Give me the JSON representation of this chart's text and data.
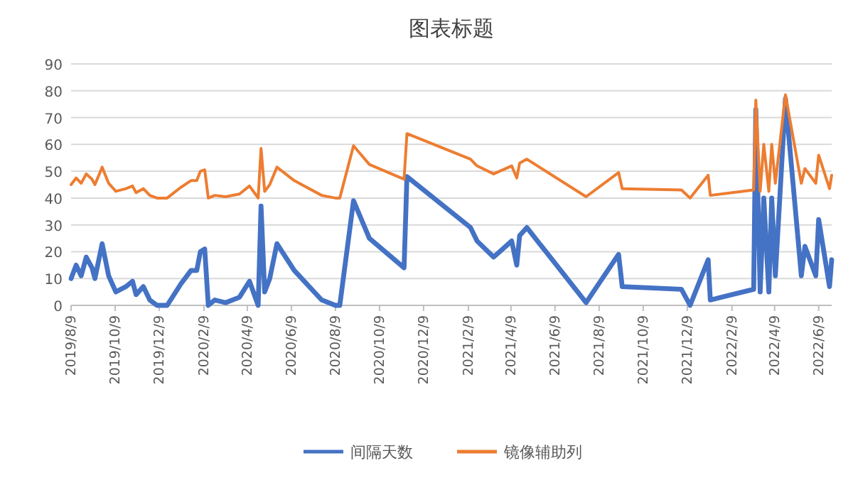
{
  "chart_data": {
    "type": "line",
    "title": "图表标题",
    "x": [
      "2019-08-09",
      "2019-08-16",
      "2019-08-23",
      "2019-08-30",
      "2019-09-07",
      "2019-09-11",
      "2019-09-21",
      "2019-09-30",
      "2019-10-10",
      "2019-10-24",
      "2019-11-02",
      "2019-11-07",
      "2019-11-17",
      "2019-11-26",
      "2019-12-06",
      "2019-12-20",
      "2020-01-08",
      "2020-01-22",
      "2020-01-30",
      "2020-02-04",
      "2020-02-10",
      "2020-02-15",
      "2020-02-24",
      "2020-03-10",
      "2020-03-29",
      "2020-04-12",
      "2020-04-24",
      "2020-04-28",
      "2020-05-03",
      "2020-05-10",
      "2020-05-20",
      "2020-06-13",
      "2020-07-21",
      "2020-08-09",
      "2020-08-15",
      "2020-09-03",
      "2020-09-25",
      "2020-11-12",
      "2020-11-16",
      "2021-02-12",
      "2021-02-21",
      "2021-03-16",
      "2021-04-10",
      "2021-04-17",
      "2021-04-21",
      "2021-05-01",
      "2021-07-22",
      "2021-09-05",
      "2021-09-10",
      "2021-12-01",
      "2021-12-13",
      "2022-01-07",
      "2022-01-10",
      "2022-03-11",
      "2022-03-14",
      "2022-03-20",
      "2022-03-25",
      "2022-04-01",
      "2022-04-05",
      "2022-04-10",
      "2022-04-24",
      "2022-05-16",
      "2022-05-21",
      "2022-06-05",
      "2022-06-09",
      "2022-06-24",
      "2022-06-27"
    ],
    "series": [
      {
        "name": "间隔天数",
        "color": "#4472c4",
        "values": [
          10,
          15,
          11,
          18,
          14,
          10,
          23,
          11,
          5,
          7,
          9,
          4,
          7,
          2,
          0,
          0,
          8,
          13,
          13,
          20,
          21,
          0,
          2,
          1,
          3,
          9,
          0,
          37,
          5,
          10,
          23,
          13,
          2,
          0,
          0,
          39,
          25,
          14,
          48,
          29,
          24,
          18,
          24,
          15,
          26,
          29,
          1,
          19,
          7,
          6,
          0,
          17,
          2,
          6,
          73,
          5,
          40,
          5,
          40,
          11,
          77,
          11,
          22,
          11,
          32,
          7,
          17
        ]
      },
      {
        "name": "镜像辅助列",
        "color": "#ed7d31",
        "values": [
          45,
          47.5,
          45.5,
          49,
          47,
          45,
          51.5,
          45.5,
          42.5,
          43.5,
          44.5,
          42,
          43.5,
          41,
          40,
          40,
          44,
          46.5,
          46.5,
          50,
          50.5,
          40,
          41,
          40.5,
          41.5,
          44.5,
          40,
          58.5,
          42.5,
          45,
          51.5,
          46.5,
          41,
          40,
          40,
          59.5,
          52.5,
          47,
          64,
          54.5,
          52,
          49,
          52,
          47.5,
          53,
          54.5,
          40.5,
          49.5,
          43.5,
          43,
          40,
          48.5,
          41,
          43,
          76.5,
          42.5,
          60,
          42.5,
          60,
          45.5,
          78.5,
          45.5,
          51,
          45.5,
          56,
          43.5,
          48.5
        ]
      }
    ],
    "xlim": [
      "2019-08-09",
      "2022-06-27"
    ],
    "xticks": [
      {
        "value": "2019-08-09",
        "label": "2019/8/9"
      },
      {
        "value": "2019-10-09",
        "label": "2019/10/9"
      },
      {
        "value": "2019-12-09",
        "label": "2019/12/9"
      },
      {
        "value": "2020-02-09",
        "label": "2020/2/9"
      },
      {
        "value": "2020-04-09",
        "label": "2020/4/9"
      },
      {
        "value": "2020-06-09",
        "label": "2020/6/9"
      },
      {
        "value": "2020-08-09",
        "label": "2020/8/9"
      },
      {
        "value": "2020-10-09",
        "label": "2020/10/9"
      },
      {
        "value": "2020-12-09",
        "label": "2020/12/9"
      },
      {
        "value": "2021-02-09",
        "label": "2021/2/9"
      },
      {
        "value": "2021-04-09",
        "label": "2021/4/9"
      },
      {
        "value": "2021-06-09",
        "label": "2021/6/9"
      },
      {
        "value": "2021-08-09",
        "label": "2021/8/9"
      },
      {
        "value": "2021-10-09",
        "label": "2021/10/9"
      },
      {
        "value": "2021-12-09",
        "label": "2021/12/9"
      },
      {
        "value": "2022-02-09",
        "label": "2022/2/9"
      },
      {
        "value": "2022-04-09",
        "label": "2022/4/9"
      },
      {
        "value": "2022-06-09",
        "label": "2022/6/9"
      }
    ],
    "ylim": [
      0,
      90
    ],
    "yticks": [
      0,
      10,
      20,
      30,
      40,
      50,
      60,
      70,
      80,
      90
    ],
    "grid": "y",
    "legend": "bottom",
    "marker": "none",
    "line_style": "solid"
  }
}
